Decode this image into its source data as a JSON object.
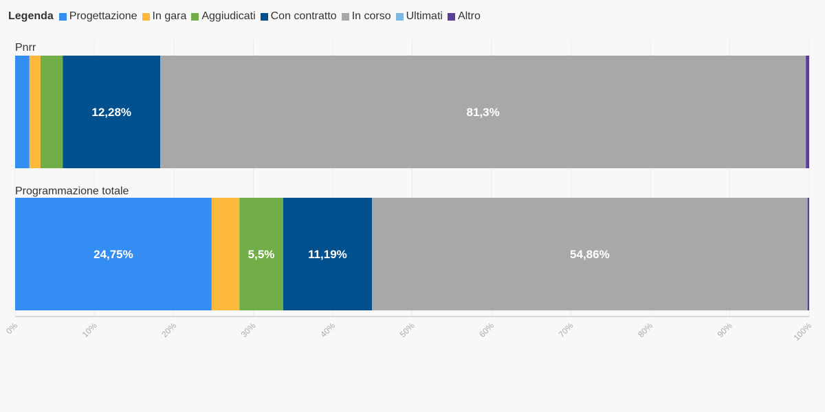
{
  "legend": {
    "title": "Legenda",
    "items": [
      {
        "label": "Progettazione",
        "color": "#338df2"
      },
      {
        "label": "In gara",
        "color": "#fdb93c"
      },
      {
        "label": "Aggiudicati",
        "color": "#72ae47"
      },
      {
        "label": "Con contratto",
        "color": "#03508f"
      },
      {
        "label": "In corso",
        "color": "#a8a8a8"
      },
      {
        "label": "Ultimati",
        "color": "#7eb8e0"
      },
      {
        "label": "Altro",
        "color": "#5b3f97"
      }
    ]
  },
  "chart_data": {
    "type": "bar",
    "orientation": "horizontal",
    "stacked": true,
    "categories": [
      "Pnrr",
      "Programmazione totale"
    ],
    "series": [
      {
        "name": "Progettazione",
        "values": [
          1.8,
          24.75
        ],
        "labels": [
          "",
          "24,75%"
        ]
      },
      {
        "name": "In gara",
        "values": [
          1.4,
          3.5
        ],
        "labels": [
          "",
          ""
        ]
      },
      {
        "name": "Aggiudicati",
        "values": [
          2.8,
          5.5
        ],
        "labels": [
          "",
          "5,5%"
        ]
      },
      {
        "name": "Con contratto",
        "values": [
          12.28,
          11.19
        ],
        "labels": [
          "12,28%",
          "11,19%"
        ]
      },
      {
        "name": "In corso",
        "values": [
          81.3,
          54.86
        ],
        "labels": [
          "81,3%",
          "54,86%"
        ]
      },
      {
        "name": "Ultimati",
        "values": [
          0,
          0
        ],
        "labels": [
          "",
          ""
        ]
      },
      {
        "name": "Altro",
        "values": [
          0.42,
          0.2
        ],
        "labels": [
          "",
          ""
        ]
      }
    ],
    "xlim": [
      0,
      100
    ],
    "xticks": [
      "0%",
      "10%",
      "20%",
      "30%",
      "40%",
      "50%",
      "60%",
      "70%",
      "80%",
      "90%",
      "100%"
    ],
    "grid": true,
    "legend_position": "top-left"
  }
}
